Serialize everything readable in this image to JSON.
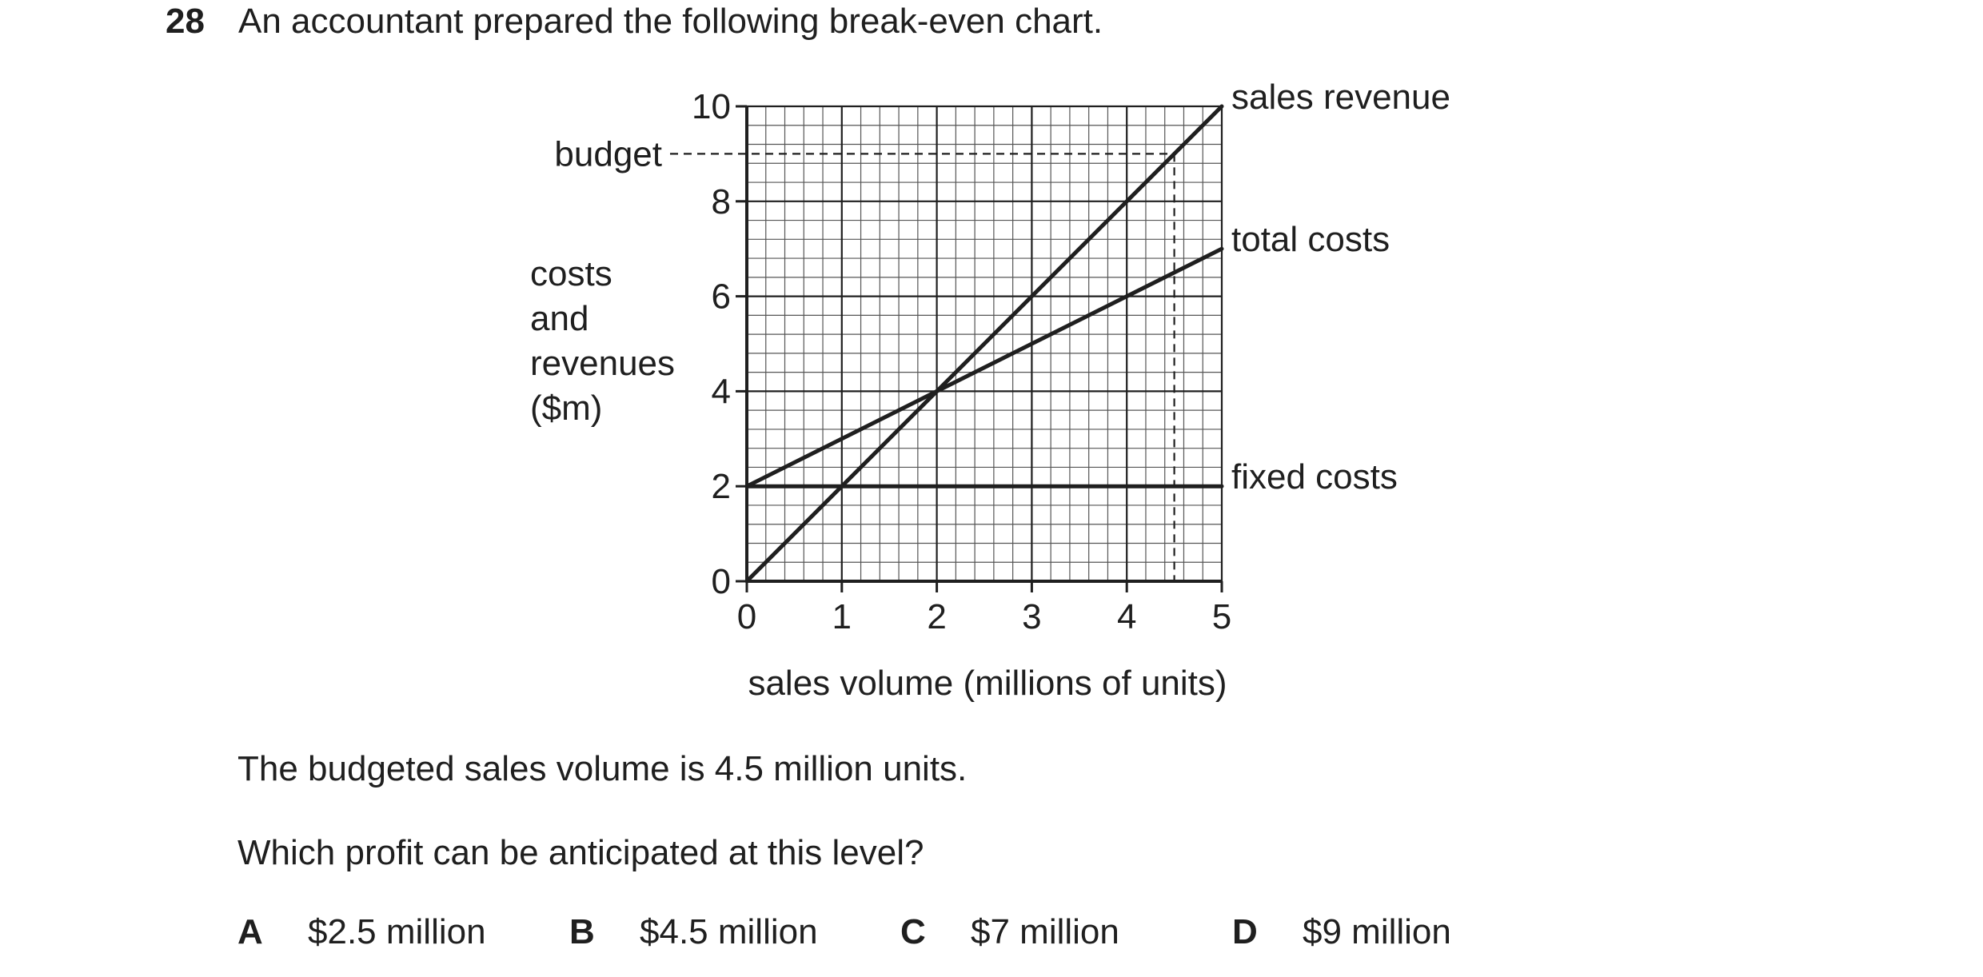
{
  "question": {
    "number": "28",
    "stem": "An accountant prepared the following break-even chart."
  },
  "chart_data": {
    "type": "line",
    "xlabel": "sales volume (millions of units)",
    "ylabel_lines": [
      "costs",
      "and",
      "revenues",
      "($m)"
    ],
    "xlim": [
      0,
      5
    ],
    "ylim": [
      0,
      10
    ],
    "x_ticks": [
      0,
      1,
      2,
      3,
      4,
      5
    ],
    "y_ticks": [
      0,
      2,
      4,
      6,
      8,
      10
    ],
    "grid": true,
    "minor_grid_per_major_x": 5,
    "minor_grid_per_major_y": 5,
    "series": [
      {
        "name": "sales revenue",
        "points": [
          [
            0,
            0
          ],
          [
            5,
            10
          ]
        ]
      },
      {
        "name": "total costs",
        "points": [
          [
            0,
            2
          ],
          [
            5,
            7
          ]
        ]
      },
      {
        "name": "fixed costs",
        "points": [
          [
            0,
            2
          ],
          [
            5,
            2
          ]
        ]
      }
    ],
    "annotations": [
      {
        "label": "budget",
        "y": 9,
        "x": 4.5
      }
    ]
  },
  "body": {
    "statement": "The budgeted sales volume is 4.5 million units.",
    "prompt": "Which profit can be anticipated at this level?"
  },
  "options": [
    {
      "letter": "A",
      "text": "$2.5 million"
    },
    {
      "letter": "B",
      "text": "$4.5 million"
    },
    {
      "letter": "C",
      "text": "$7 million"
    },
    {
      "letter": "D",
      "text": "$9 million"
    }
  ]
}
